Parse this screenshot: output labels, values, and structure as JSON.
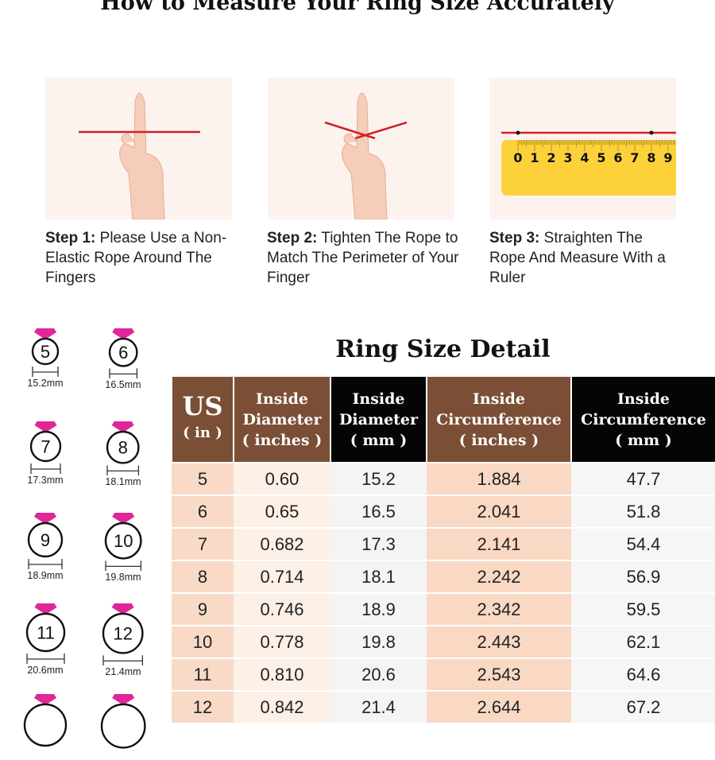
{
  "title": "How to Measure Your Ring Size Accurately",
  "steps": [
    {
      "label": "Step 1:",
      "text": "Please Use a Non-Elastic Rope Around The Fingers"
    },
    {
      "label": "Step 2:",
      "text": "Tighten The Rope to Match The Perimeter of Your Finger"
    },
    {
      "label": "Step 3:",
      "text": "Straighten The Rope And Measure With a Ruler"
    }
  ],
  "ruler_numbers": [
    "0",
    "1",
    "2",
    "3",
    "4",
    "5",
    "6",
    "7",
    "8",
    "9"
  ],
  "rings": [
    {
      "size": "5",
      "mm": "15.2mm"
    },
    {
      "size": "6",
      "mm": "16.5mm"
    },
    {
      "size": "7",
      "mm": "17.3mm"
    },
    {
      "size": "8",
      "mm": "18.1mm"
    },
    {
      "size": "9",
      "mm": "18.9mm"
    },
    {
      "size": "10",
      "mm": "19.8mm"
    },
    {
      "size": "11",
      "mm": "20.6mm"
    },
    {
      "size": "12",
      "mm": "21.4mm"
    }
  ],
  "colors": {
    "brown": "#7b4f36",
    "black": "#050505",
    "gem": "#e0279a",
    "rope": "#d2202a",
    "ruler": "#fdd13a"
  },
  "table": {
    "title": "Ring Size Detail",
    "headers": [
      {
        "line1": "US",
        "line2": "( in )"
      },
      {
        "line1": "Inside",
        "line2": "Diameter",
        "line3": "( inches )"
      },
      {
        "line1": "Inside",
        "line2": "Diameter",
        "line3": "( mm )"
      },
      {
        "line1": "Inside",
        "line2": "Circumference",
        "line3": "( inches )"
      },
      {
        "line1": "Inside",
        "line2": "Circumference",
        "line3": "( mm )"
      }
    ],
    "rows": [
      [
        "5",
        "0.60",
        "15.2",
        "1.884",
        "47.7"
      ],
      [
        "6",
        "0.65",
        "16.5",
        "2.041",
        "51.8"
      ],
      [
        "7",
        "0.682",
        "17.3",
        "2.141",
        "54.4"
      ],
      [
        "8",
        "0.714",
        "18.1",
        "2.242",
        "56.9"
      ],
      [
        "9",
        "0.746",
        "18.9",
        "2.342",
        "59.5"
      ],
      [
        "10",
        "0.778",
        "19.8",
        "2.443",
        "62.1"
      ],
      [
        "11",
        "0.810",
        "20.6",
        "2.543",
        "64.6"
      ],
      [
        "12",
        "0.842",
        "21.4",
        "2.644",
        "67.2"
      ]
    ]
  }
}
